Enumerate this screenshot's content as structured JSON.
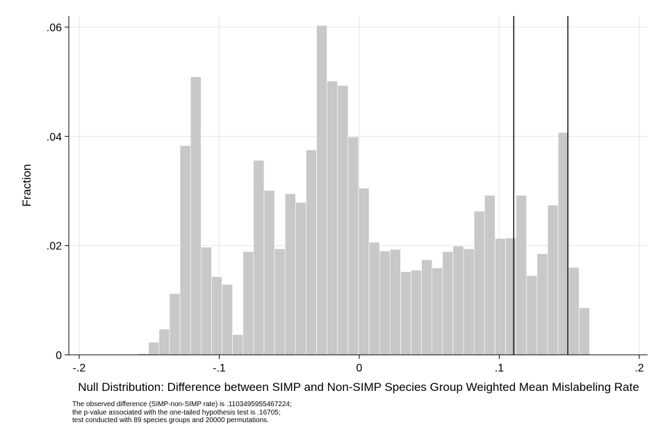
{
  "chart_data": {
    "type": "bar",
    "subtype": "histogram",
    "xlabel": "Null Distribution: Difference between SIMP and Non-SIMP Species Group Weighted Mean Mislabeling Rate",
    "ylabel": "Fraction",
    "xlim": [
      -0.2,
      0.2
    ],
    "ylim": [
      0,
      0.06
    ],
    "x_ticks": [
      {
        "value": -0.2,
        "label": "-.2"
      },
      {
        "value": -0.1,
        "label": "-.1"
      },
      {
        "value": 0,
        "label": "0"
      },
      {
        "value": 0.1,
        "label": ".1"
      },
      {
        "value": 0.2,
        "label": ".2"
      }
    ],
    "y_ticks": [
      {
        "value": 0,
        "label": "0"
      },
      {
        "value": 0.02,
        "label": ".02"
      },
      {
        "value": 0.04,
        "label": ".04"
      },
      {
        "value": 0.06,
        "label": ".06"
      }
    ],
    "grid": true,
    "bar_color": "#c8c8c8",
    "bin_width": 0.0075,
    "bins": [
      {
        "x0": -0.158,
        "value": 0.0002
      },
      {
        "x0": -0.1505,
        "value": 0.0023
      },
      {
        "x0": -0.143,
        "value": 0.0047
      },
      {
        "x0": -0.1355,
        "value": 0.0112
      },
      {
        "x0": -0.128,
        "value": 0.0383
      },
      {
        "x0": -0.1205,
        "value": 0.0509
      },
      {
        "x0": -0.113,
        "value": 0.0197
      },
      {
        "x0": -0.1055,
        "value": 0.0143
      },
      {
        "x0": -0.098,
        "value": 0.0129
      },
      {
        "x0": -0.0905,
        "value": 0.0037
      },
      {
        "x0": -0.083,
        "value": 0.0189
      },
      {
        "x0": -0.0755,
        "value": 0.0356
      },
      {
        "x0": -0.068,
        "value": 0.0301
      },
      {
        "x0": -0.0605,
        "value": 0.0194
      },
      {
        "x0": -0.053,
        "value": 0.0295
      },
      {
        "x0": -0.0455,
        "value": 0.0279
      },
      {
        "x0": -0.038,
        "value": 0.0375
      },
      {
        "x0": -0.0305,
        "value": 0.0603
      },
      {
        "x0": -0.023,
        "value": 0.0501
      },
      {
        "x0": -0.0155,
        "value": 0.0493
      },
      {
        "x0": -0.008,
        "value": 0.0399
      },
      {
        "x0": -0.0005,
        "value": 0.0305
      },
      {
        "x0": 0.007,
        "value": 0.0206
      },
      {
        "x0": 0.0145,
        "value": 0.019
      },
      {
        "x0": 0.022,
        "value": 0.0193
      },
      {
        "x0": 0.0295,
        "value": 0.0152
      },
      {
        "x0": 0.037,
        "value": 0.0155
      },
      {
        "x0": 0.0445,
        "value": 0.0174
      },
      {
        "x0": 0.052,
        "value": 0.0159
      },
      {
        "x0": 0.0595,
        "value": 0.0189
      },
      {
        "x0": 0.067,
        "value": 0.0199
      },
      {
        "x0": 0.0745,
        "value": 0.0194
      },
      {
        "x0": 0.082,
        "value": 0.0263
      },
      {
        "x0": 0.0895,
        "value": 0.0292
      },
      {
        "x0": 0.097,
        "value": 0.0213
      },
      {
        "x0": 0.1045,
        "value": 0.0214
      },
      {
        "x0": 0.112,
        "value": 0.0292
      },
      {
        "x0": 0.1195,
        "value": 0.0145
      },
      {
        "x0": 0.127,
        "value": 0.0185
      },
      {
        "x0": 0.1345,
        "value": 0.0274
      },
      {
        "x0": 0.142,
        "value": 0.0407
      },
      {
        "x0": 0.1495,
        "value": 0.016
      },
      {
        "x0": 0.157,
        "value": 0.0086
      }
    ],
    "reference_lines": [
      {
        "x": 0.1103495955467224
      },
      {
        "x": 0.149
      }
    ]
  },
  "note": {
    "lines": [
      "The observed difference (SIMP-non-SIMP rate) is .1103495955467224;",
      "the p-value associated with the one-tailed hypothesis test is .16705;",
      "test conducted with 89 species groups and 20000 permutations."
    ]
  }
}
